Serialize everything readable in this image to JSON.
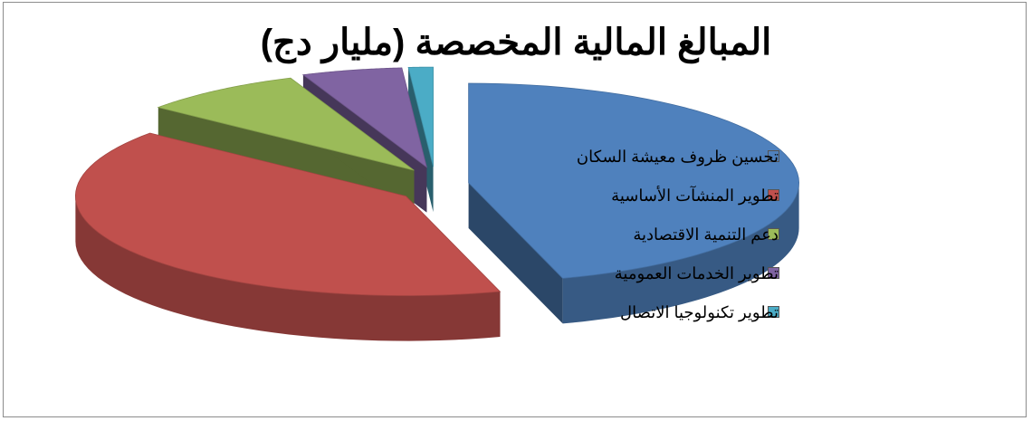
{
  "chart_data": {
    "type": "pie",
    "title": "المبالغ المالية المخصصة (مليار دج)",
    "variant": "3d-exploded",
    "categories": [
      "تحسين ظروف معيشة السكان",
      "تطوير المنشآت الأساسية",
      "دعم التنمية الاقتصادية",
      "تطوير الخدمات العمومية",
      "تطوير تكنولوجيا الاتصال"
    ],
    "values": [
      45.4,
      40.5,
      8.0,
      4.9,
      1.2
    ],
    "colors": [
      "#4F81BD",
      "#C0504D",
      "#9BBB59",
      "#8064A2",
      "#4BACC6"
    ],
    "legend_position": "right"
  }
}
